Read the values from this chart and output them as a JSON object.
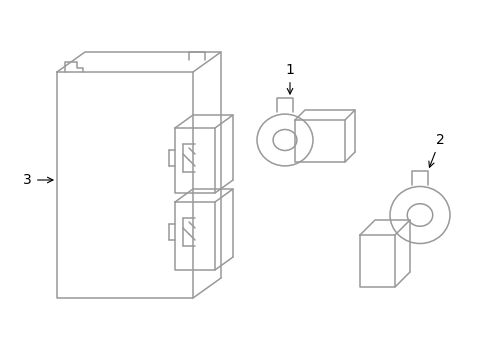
{
  "bg_color": "#ffffff",
  "line_color": "#999999",
  "text_color": "#000000",
  "label1": "1",
  "label2": "2",
  "label3": "3"
}
